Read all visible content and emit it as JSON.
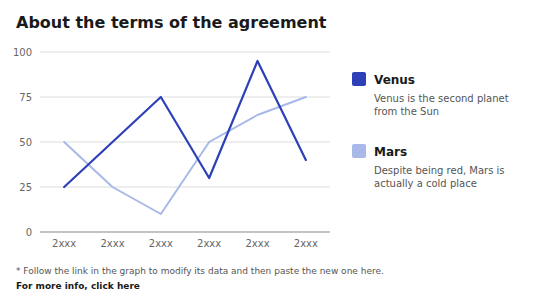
{
  "chart_data": {
    "type": "line",
    "title": "About the terms of the agreement",
    "categories": [
      "2xxx",
      "2xxx",
      "2xxx",
      "2xxx",
      "2xxx",
      "2xxx"
    ],
    "series": [
      {
        "name": "Venus",
        "color": "#2d40b8",
        "description": "Venus is the second planet\nfrom the Sun",
        "values": [
          25,
          50,
          75,
          30,
          95,
          40
        ]
      },
      {
        "name": "Mars",
        "color": "#a8b8e8",
        "description": "Despite being red, Mars is\nactually a cold place",
        "values": [
          50,
          25,
          10,
          50,
          65,
          75
        ]
      }
    ],
    "ylim": [
      0,
      100
    ],
    "yticks": [
      0,
      25,
      50,
      75,
      100
    ],
    "grid": true,
    "legend": "right",
    "annotations": [
      "* Follow the link in the graph to modify its data and then paste the new one here.",
      "For more info, click here"
    ]
  }
}
